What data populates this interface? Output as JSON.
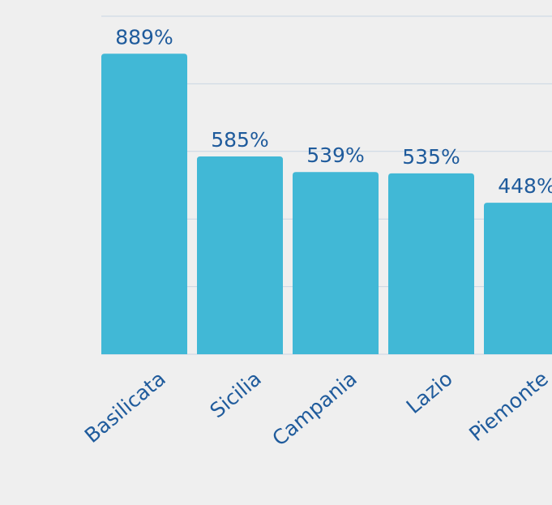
{
  "chart_data": {
    "type": "bar",
    "categories": [
      "Basilicata",
      "Sicilia",
      "Campania",
      "Lazio",
      "Piemonte"
    ],
    "values": [
      889,
      585,
      539,
      535,
      448
    ],
    "value_labels": [
      "889%",
      "585%",
      "539%",
      "535%",
      "448%"
    ],
    "color": "#41b8d6",
    "ylim": [
      0,
      1000
    ],
    "yticks": [
      0,
      200,
      400,
      600,
      800,
      1000
    ],
    "grid": true
  }
}
